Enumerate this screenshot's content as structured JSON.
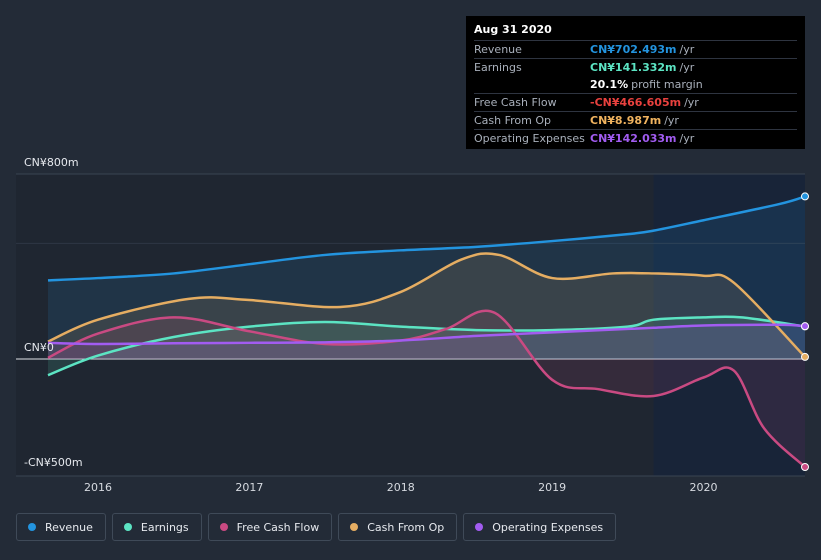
{
  "tooltip": {
    "date": "Aug 31 2020",
    "rows": [
      {
        "name": "Revenue",
        "value": "CN¥702.493m",
        "unit": "/yr",
        "color": "#2394df"
      },
      {
        "name": "Earnings",
        "value": "CN¥141.332m",
        "unit": "/yr",
        "color": "#5ce4c3"
      },
      {
        "name": "",
        "value": "20.1%",
        "unit": "profit margin",
        "color": "#ffffff"
      },
      {
        "name": "Free Cash Flow",
        "value": "-CN¥466.605m",
        "unit": "/yr",
        "color": "#e8413e"
      },
      {
        "name": "Cash From Op",
        "value": "CN¥8.987m",
        "unit": "/yr",
        "color": "#f0b35f"
      },
      {
        "name": "Operating Expenses",
        "value": "CN¥142.033m",
        "unit": "/yr",
        "color": "#a25cf1"
      }
    ]
  },
  "y_labels": {
    "top": "CN¥800m",
    "zero": "CN¥0",
    "bottom": "-CN¥500m"
  },
  "legend": [
    {
      "label": "Revenue",
      "color": "#2394df"
    },
    {
      "label": "Earnings",
      "color": "#5ce4c3"
    },
    {
      "label": "Free Cash Flow",
      "color": "#c94a82"
    },
    {
      "label": "Cash From Op",
      "color": "#e5ad62"
    },
    {
      "label": "Operating Expenses",
      "color": "#a25cf1"
    }
  ],
  "chart_data": {
    "type": "line",
    "ylim": [
      -500,
      800
    ],
    "x_ticks": [
      "2016",
      "2017",
      "2018",
      "2019",
      "2020"
    ],
    "x_tick_values": [
      2016.0,
      2017.0,
      2018.0,
      2019.0,
      2020.0
    ],
    "xlim": [
      2015.6,
      2020.67
    ],
    "forecast_start": 2019.67,
    "series": [
      {
        "name": "Revenue",
        "color": "#2394df",
        "x": [
          2015.67,
          2016.0,
          2016.5,
          2017.0,
          2017.5,
          2018.0,
          2018.5,
          2019.0,
          2019.5,
          2019.67,
          2020.0,
          2020.5,
          2020.67
        ],
        "values": [
          340,
          350,
          370,
          410,
          450,
          470,
          485,
          510,
          540,
          555,
          600,
          670,
          703
        ]
      },
      {
        "name": "Earnings",
        "color": "#5ce4c3",
        "x": [
          2015.67,
          2016.0,
          2016.5,
          2017.0,
          2017.5,
          2018.0,
          2018.5,
          2019.0,
          2019.5,
          2019.67,
          2020.0,
          2020.25,
          2020.67
        ],
        "values": [
          -70,
          15,
          95,
          140,
          160,
          140,
          125,
          125,
          140,
          170,
          180,
          180,
          141
        ]
      },
      {
        "name": "Free Cash Flow",
        "color": "#c94a82",
        "x": [
          2015.67,
          2016.0,
          2016.5,
          2017.0,
          2017.5,
          2018.0,
          2018.3,
          2018.62,
          2019.0,
          2019.3,
          2019.67,
          2020.0,
          2020.2,
          2020.4,
          2020.67
        ],
        "values": [
          5,
          110,
          180,
          120,
          65,
          80,
          130,
          200,
          -90,
          -130,
          -160,
          -80,
          -50,
          -300,
          -467
        ]
      },
      {
        "name": "Cash From Op",
        "color": "#e5ad62",
        "x": [
          2015.67,
          2016.0,
          2016.6,
          2017.0,
          2017.6,
          2018.0,
          2018.4,
          2018.65,
          2019.0,
          2019.4,
          2019.67,
          2020.0,
          2020.2,
          2020.67
        ],
        "values": [
          75,
          170,
          260,
          255,
          225,
          290,
          430,
          450,
          350,
          370,
          370,
          360,
          330,
          9
        ]
      },
      {
        "name": "Operating Expenses",
        "color": "#a25cf1",
        "x": [
          2015.67,
          2016.0,
          2016.5,
          2017.0,
          2017.5,
          2018.0,
          2018.5,
          2019.0,
          2019.5,
          2019.67,
          2020.0,
          2020.5,
          2020.67
        ],
        "values": [
          70,
          65,
          68,
          70,
          72,
          80,
          100,
          115,
          130,
          135,
          145,
          148,
          142
        ]
      }
    ]
  }
}
